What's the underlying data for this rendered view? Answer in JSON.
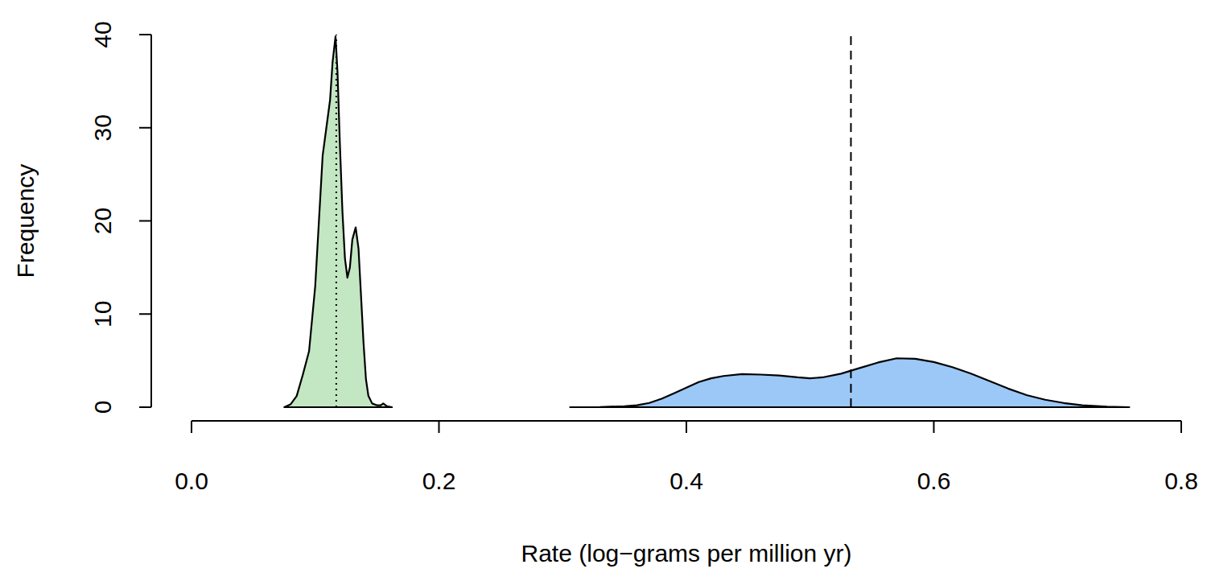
{
  "chart_data": {
    "type": "density",
    "x_label": "Rate (log−grams per million yr)",
    "y_label": "Frequency",
    "xlim": [
      0,
      0.8
    ],
    "xticks": [
      {
        "value": 0,
        "label": "0.0"
      },
      0.2,
      0.4,
      0.6,
      0.8
    ],
    "ylim": [
      0,
      40
    ],
    "yticks": [
      0,
      10,
      20,
      30,
      40
    ],
    "series": [
      {
        "color": "#c3e6c3",
        "x": [
          0.075,
          0.08,
          0.085,
          0.09,
          0.095,
          0.1,
          0.103,
          0.106,
          0.109,
          0.112,
          0.114,
          0.1164,
          0.118,
          0.12,
          0.122,
          0.124,
          0.126,
          0.128,
          0.13,
          0.1327,
          0.135,
          0.137,
          0.139,
          0.141,
          0.143,
          0.146,
          0.15,
          0.153,
          0.155,
          0.158,
          0.162
        ],
        "values": [
          0,
          0.3,
          1.2,
          3.5,
          6,
          13,
          20,
          27,
          30,
          33,
          37,
          39.8,
          36,
          28,
          21,
          16,
          13.9,
          15,
          18,
          19.3,
          17,
          12,
          7,
          3,
          1.2,
          0.4,
          0.2,
          0.2,
          0.4,
          0.1,
          0
        ]
      },
      {
        "color": "#9cc8f7",
        "x": [
          0.306,
          0.33,
          0.35,
          0.36,
          0.37,
          0.38,
          0.39,
          0.4,
          0.41,
          0.42,
          0.43,
          0.445,
          0.46,
          0.475,
          0.49,
          0.5,
          0.51,
          0.525,
          0.54,
          0.555,
          0.57,
          0.585,
          0.6,
          0.615,
          0.63,
          0.645,
          0.66,
          0.675,
          0.69,
          0.705,
          0.72,
          0.74,
          0.758
        ],
        "values": [
          0,
          0.02,
          0.1,
          0.2,
          0.45,
          0.9,
          1.5,
          2.1,
          2.7,
          3.1,
          3.35,
          3.55,
          3.5,
          3.4,
          3.2,
          3.1,
          3.2,
          3.6,
          4.2,
          4.8,
          5.25,
          5.2,
          4.85,
          4.3,
          3.6,
          2.8,
          2.0,
          1.3,
          0.8,
          0.45,
          0.2,
          0.05,
          0
        ]
      }
    ],
    "reference_lines": [
      {
        "x": 0.117,
        "line_style": "dotted"
      },
      {
        "x": 0.533,
        "line_style": "dashed"
      }
    ]
  }
}
